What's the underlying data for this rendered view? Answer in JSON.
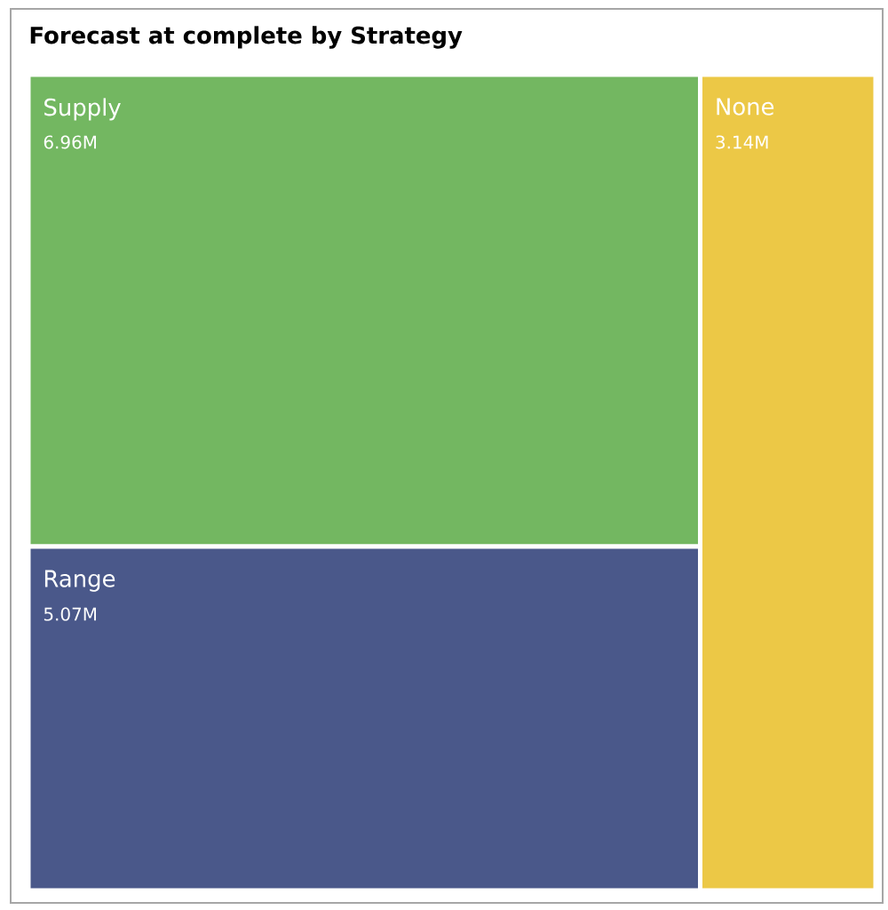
{
  "chart_data": {
    "type": "other",
    "title": "Forecast at complete by Strategy",
    "categories": [
      "Supply",
      "Range",
      "None"
    ],
    "values": [
      6.96,
      5.07,
      3.14
    ],
    "value_labels": [
      "6.96M",
      "5.07M",
      "3.14M"
    ],
    "colors": [
      "#73b761",
      "#4a588a",
      "#ecc846"
    ]
  }
}
